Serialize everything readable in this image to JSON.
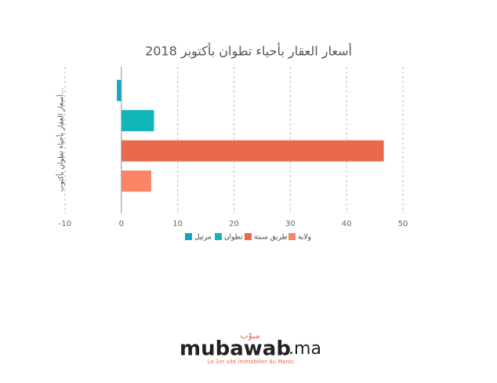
{
  "chart_data": {
    "type": "bar",
    "orientation": "horizontal",
    "title": "أسعار العقار بأحياء تطوان بأكتوبر 2018",
    "y_label": "أسعار العقار بأحياء تطوان بأكتوب...",
    "series": [
      {
        "name": "مرتيل",
        "color": "#0ca9c4",
        "values": [
          -0.8
        ]
      },
      {
        "name": "تطوان",
        "color": "#12b6b8",
        "values": [
          5.8
        ]
      },
      {
        "name": "طريق سبتة",
        "color": "#e8694c",
        "values": [
          46.6
        ]
      },
      {
        "name": "ولاية",
        "color": "#fb8466",
        "values": [
          5.3
        ]
      }
    ],
    "xlim": [
      -10,
      50
    ],
    "xticks": [
      -10,
      0,
      10,
      20,
      30,
      40,
      50
    ],
    "grid": true,
    "legend": "bottom"
  },
  "logo": {
    "arabic": "مبوّب",
    "name": "mubawab",
    "domain": ".ma",
    "tagline": "Le 1er site immobilier du Maroc"
  }
}
